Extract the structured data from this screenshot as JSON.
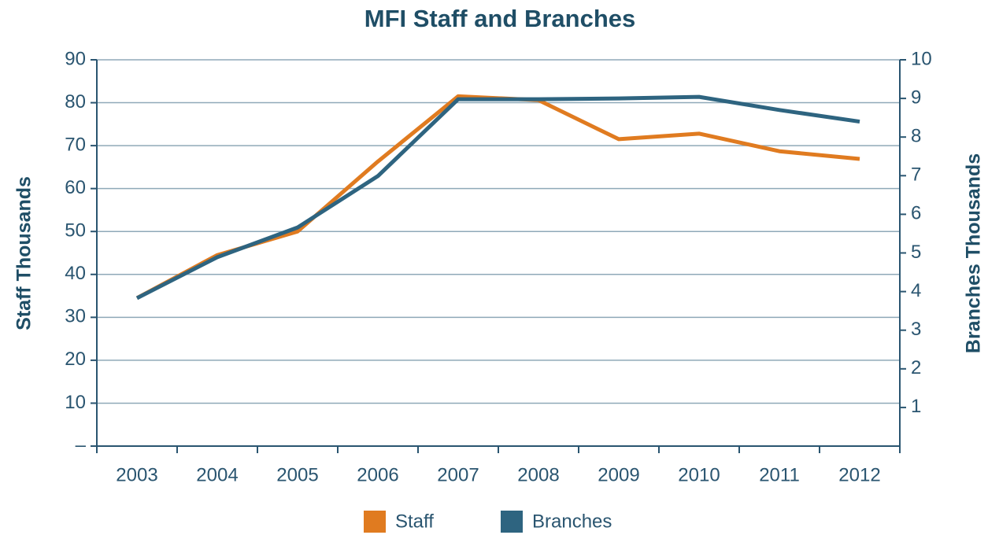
{
  "chart_data": {
    "type": "line",
    "title": "MFI Staff and Branches",
    "y_label": "Staff Thousands",
    "y2_label": "Branches Thousands",
    "categories": [
      "2003",
      "2004",
      "2005",
      "2006",
      "2007",
      "2008",
      "2009",
      "2010",
      "2011",
      "2012"
    ],
    "series": [
      {
        "name": "Staff",
        "color": "#e07b20",
        "values": [
          34.5,
          44.5,
          50,
          66.3,
          81.5,
          80.6,
          71.5,
          72.8,
          68.7,
          66.9
        ]
      },
      {
        "name": "Branches",
        "color": "#2e6480",
        "axis": "y2",
        "values": [
          3.83,
          4.89,
          5.66,
          6.99,
          8.98,
          8.98,
          9.0,
          9.04,
          8.7,
          8.4
        ]
      }
    ],
    "ylim": [
      0,
      90
    ],
    "yticks": [
      {
        "value": 0,
        "label": "–"
      },
      10,
      20,
      30,
      40,
      50,
      60,
      70,
      80,
      90
    ],
    "y2lim": [
      0,
      10
    ],
    "y2ticks": [
      1,
      2,
      3,
      4,
      5,
      6,
      7,
      8,
      9,
      10
    ],
    "grid": true,
    "legend": "bottom"
  }
}
